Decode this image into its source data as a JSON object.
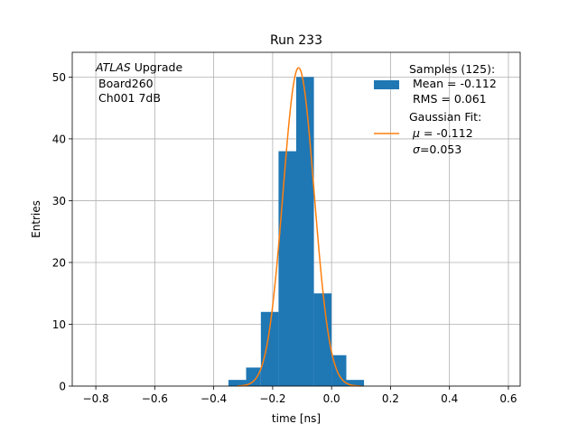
{
  "chart_data": {
    "type": "histogram",
    "title": "Run 233",
    "xlabel": "time [ns]",
    "ylabel": "Entries",
    "xlim": [
      -0.88,
      0.64
    ],
    "ylim": [
      0,
      54
    ],
    "grid": true,
    "x_ticks": [
      -0.8,
      -0.6,
      -0.4,
      -0.2,
      0.0,
      0.2,
      0.4,
      0.6
    ],
    "x_tick_labels": [
      "−0.8",
      "−0.6",
      "−0.4",
      "−0.2",
      "0.0",
      "0.2",
      "0.4",
      "0.6"
    ],
    "y_ticks": [
      0,
      10,
      20,
      30,
      40,
      50
    ],
    "y_tick_labels": [
      "0",
      "10",
      "20",
      "30",
      "40",
      "50"
    ],
    "annotation": {
      "line1_italic": "ATLAS",
      "line1_rest": " Upgrade",
      "line2": "Board260",
      "line3": "Ch001 7dB"
    },
    "legend_position": "upper right",
    "legend": {
      "samples_title": "Samples (125):",
      "samples_mean": "Mean = -0.112",
      "samples_rms": "RMS = 0.061",
      "fit_title": "Gaussian Fit:",
      "fit_mu_symbol": "μ",
      "fit_mu_value": " = -0.112",
      "fit_sigma_symbol": "σ",
      "fit_sigma_value": "=0.053"
    },
    "series": [
      {
        "kind": "histogram",
        "color": "#1f77b4",
        "bin_edges": [
          -0.35,
          -0.29,
          -0.24,
          -0.18,
          -0.12,
          -0.06,
          -0.0,
          0.05,
          0.11
        ],
        "counts": [
          1,
          3,
          12,
          38,
          50,
          15,
          5,
          1
        ]
      },
      {
        "kind": "gaussian_fit",
        "color": "#ff7f0e",
        "mu": -0.112,
        "sigma": 0.053,
        "amplitude": 51.5,
        "x_range": [
          -0.32,
          0.1
        ]
      }
    ]
  }
}
